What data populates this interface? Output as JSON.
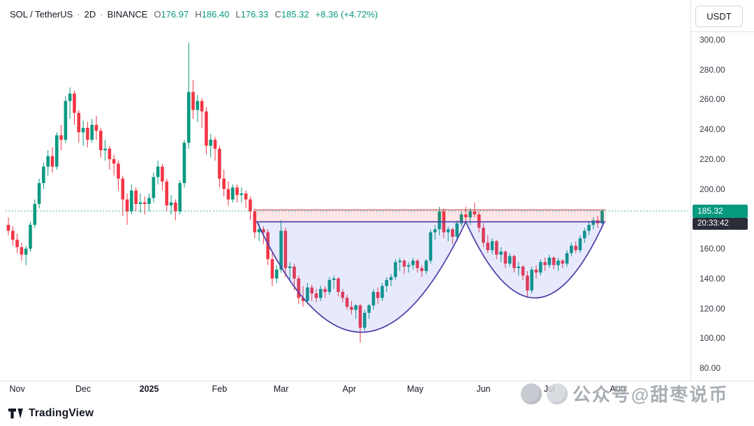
{
  "header": {
    "symbol": "SOL / TetherUS",
    "separator": "·",
    "interval": "2D",
    "exchange": "BINANCE",
    "open_label": "O",
    "open": "176.97",
    "high_label": "H",
    "high": "186.40",
    "low_label": "L",
    "low": "176.33",
    "close_label": "C",
    "close": "185.32",
    "change": "+8.36 (+4.72%)"
  },
  "price_axis": {
    "currency": "USDT",
    "last_price": "185.32",
    "countdown": "20:33:42"
  },
  "footer": {
    "brand": "TradingView"
  },
  "watermark": {
    "text": "公众号@甜枣说币"
  },
  "colors": {
    "up": "#089981",
    "down": "#f23645",
    "zone_fill": "rgba(242,54,69,0.13)",
    "zone_border": "rgba(204,47,60,0.85)",
    "cup_fill": "rgba(88,108,240,0.14)",
    "cup_stroke": "#5243aa",
    "price_line": "#089981",
    "badge_bg": "#089981",
    "countdown_bg": "#2a2e39",
    "axis_line": "#e0e3eb"
  },
  "chart_data": {
    "type": "candlestick",
    "symbol": "SOL/USDT",
    "exchange": "BINANCE",
    "interval": "2D",
    "grid": false,
    "last_price": 185.32,
    "ohlc_current": {
      "open": 176.97,
      "high": 186.4,
      "low": 176.33,
      "close": 185.32,
      "change": 8.36,
      "change_pct": 4.72
    },
    "ylim": [
      72,
      306
    ],
    "y_ticks": [
      300,
      280,
      260,
      240,
      220,
      200,
      180,
      160,
      140,
      120,
      100,
      80
    ],
    "x_labels": [
      {
        "text": "Nov",
        "index": 2
      },
      {
        "text": "Dec",
        "index": 17
      },
      {
        "text": "2025",
        "index": 32,
        "bold": true
      },
      {
        "text": "Feb",
        "index": 48
      },
      {
        "text": "Mar",
        "index": 62
      },
      {
        "text": "Apr",
        "index": 77.5
      },
      {
        "text": "May",
        "index": 92.5
      },
      {
        "text": "Jun",
        "index": 108
      },
      {
        "text": "Jul",
        "index": 123
      },
      {
        "text": "Aug",
        "index": 138.5
      }
    ],
    "candles": [
      [
        176,
        181,
        169,
        172
      ],
      [
        172,
        175,
        162,
        166
      ],
      [
        166,
        170,
        157,
        161
      ],
      [
        161,
        164,
        152,
        156
      ],
      [
        156,
        162,
        149,
        160
      ],
      [
        160,
        178,
        158,
        176
      ],
      [
        176,
        193,
        174,
        190
      ],
      [
        190,
        207,
        187,
        204
      ],
      [
        204,
        218,
        200,
        215
      ],
      [
        215,
        226,
        209,
        222
      ],
      [
        222,
        228,
        211,
        215
      ],
      [
        215,
        238,
        213,
        236
      ],
      [
        236,
        243,
        226,
        233
      ],
      [
        233,
        262,
        231,
        259
      ],
      [
        259,
        268,
        247,
        264
      ],
      [
        264,
        266,
        243,
        251
      ],
      [
        251,
        253,
        231,
        238
      ],
      [
        238,
        246,
        229,
        241
      ],
      [
        241,
        245,
        228,
        233
      ],
      [
        233,
        247,
        231,
        243
      ],
      [
        243,
        249,
        233,
        239
      ],
      [
        239,
        241,
        221,
        226
      ],
      [
        226,
        233,
        219,
        227
      ],
      [
        227,
        229,
        213,
        220
      ],
      [
        220,
        223,
        209,
        217
      ],
      [
        217,
        219,
        199,
        207
      ],
      [
        207,
        209,
        182,
        193
      ],
      [
        193,
        197,
        176,
        185
      ],
      [
        185,
        203,
        183,
        199
      ],
      [
        199,
        201,
        185,
        190
      ],
      [
        190,
        197,
        184,
        191
      ],
      [
        191,
        195,
        183,
        190
      ],
      [
        190,
        197,
        185,
        194
      ],
      [
        194,
        211,
        191,
        208
      ],
      [
        208,
        219,
        203,
        215
      ],
      [
        215,
        217,
        199,
        205
      ],
      [
        205,
        207,
        185,
        189
      ],
      [
        189,
        196,
        183,
        191
      ],
      [
        191,
        193,
        179,
        185
      ],
      [
        185,
        206,
        183,
        204
      ],
      [
        204,
        233,
        201,
        231
      ],
      [
        231,
        298,
        227,
        265
      ],
      [
        265,
        273,
        247,
        253
      ],
      [
        253,
        263,
        245,
        259
      ],
      [
        259,
        261,
        241,
        252
      ],
      [
        252,
        255,
        223,
        229
      ],
      [
        229,
        237,
        221,
        233
      ],
      [
        233,
        235,
        219,
        227
      ],
      [
        227,
        229,
        201,
        207
      ],
      [
        207,
        213,
        195,
        200
      ],
      [
        200,
        205,
        189,
        193
      ],
      [
        193,
        203,
        191,
        201
      ],
      [
        201,
        203,
        191,
        196
      ],
      [
        196,
        201,
        191,
        197
      ],
      [
        197,
        199,
        187,
        193
      ],
      [
        193,
        195,
        179,
        185
      ],
      [
        185,
        187,
        167,
        171
      ],
      [
        171,
        177,
        165,
        173
      ],
      [
        173,
        175,
        163,
        171
      ],
      [
        171,
        173,
        149,
        153
      ],
      [
        153,
        157,
        135,
        140
      ],
      [
        140,
        149,
        137,
        146
      ],
      [
        146,
        179,
        144,
        172
      ],
      [
        172,
        174,
        141,
        147
      ],
      [
        147,
        151,
        139,
        148
      ],
      [
        148,
        150,
        132,
        140
      ],
      [
        140,
        142,
        123,
        127
      ],
      [
        127,
        135,
        121,
        125
      ],
      [
        125,
        137,
        123,
        134
      ],
      [
        134,
        136,
        125,
        130
      ],
      [
        130,
        133,
        124,
        127
      ],
      [
        127,
        135,
        125,
        133
      ],
      [
        133,
        135,
        127,
        131
      ],
      [
        131,
        141,
        129,
        139
      ],
      [
        139,
        142,
        133,
        140
      ],
      [
        140,
        141,
        128,
        131
      ],
      [
        131,
        133,
        124,
        127
      ],
      [
        127,
        129,
        119,
        121
      ],
      [
        121,
        125,
        116,
        119
      ],
      [
        119,
        123,
        113,
        122
      ],
      [
        122,
        123,
        97,
        107
      ],
      [
        107,
        119,
        105,
        117
      ],
      [
        117,
        123,
        113,
        122
      ],
      [
        122,
        133,
        119,
        131
      ],
      [
        131,
        134,
        123,
        127
      ],
      [
        127,
        137,
        125,
        135
      ],
      [
        135,
        141,
        131,
        139
      ],
      [
        139,
        143,
        135,
        141
      ],
      [
        141,
        153,
        139,
        151
      ],
      [
        151,
        154,
        145,
        152
      ],
      [
        152,
        153,
        143,
        148
      ],
      [
        148,
        151,
        144,
        149
      ],
      [
        149,
        154,
        146,
        152
      ],
      [
        152,
        153,
        144,
        147
      ],
      [
        147,
        149,
        141,
        145
      ],
      [
        145,
        153,
        143,
        152
      ],
      [
        152,
        173,
        150,
        171
      ],
      [
        171,
        176,
        166,
        173
      ],
      [
        173,
        188,
        169,
        185
      ],
      [
        185,
        187,
        167,
        171
      ],
      [
        171,
        175,
        165,
        173
      ],
      [
        173,
        174,
        163,
        168
      ],
      [
        168,
        179,
        165,
        177
      ],
      [
        177,
        185,
        175,
        183
      ],
      [
        183,
        188,
        177,
        181
      ],
      [
        181,
        187,
        176,
        185
      ],
      [
        185,
        191,
        181,
        183
      ],
      [
        183,
        185,
        171,
        174
      ],
      [
        174,
        177,
        161,
        164
      ],
      [
        164,
        169,
        157,
        159
      ],
      [
        159,
        167,
        156,
        165
      ],
      [
        165,
        166,
        153,
        156
      ],
      [
        156,
        161,
        151,
        158
      ],
      [
        158,
        159,
        147,
        150
      ],
      [
        150,
        157,
        148,
        155
      ],
      [
        155,
        156,
        144,
        147
      ],
      [
        147,
        151,
        142,
        148
      ],
      [
        148,
        149,
        139,
        142
      ],
      [
        142,
        145,
        127,
        132
      ],
      [
        132,
        148,
        130,
        146
      ],
      [
        146,
        149,
        140,
        144
      ],
      [
        144,
        153,
        142,
        151
      ],
      [
        151,
        154,
        145,
        149
      ],
      [
        149,
        156,
        147,
        154
      ],
      [
        154,
        155,
        146,
        149
      ],
      [
        149,
        154,
        145,
        152
      ],
      [
        152,
        153,
        147,
        150
      ],
      [
        150,
        159,
        148,
        157
      ],
      [
        157,
        164,
        155,
        162
      ],
      [
        162,
        165,
        157,
        159
      ],
      [
        159,
        169,
        157,
        167
      ],
      [
        167,
        174,
        164,
        172
      ],
      [
        172,
        178,
        169,
        176
      ],
      [
        176,
        181,
        173,
        179
      ],
      [
        179,
        182,
        174,
        177
      ],
      [
        176.97,
        186.4,
        176.33,
        185.32
      ]
    ],
    "overlays": {
      "resistance_zone": {
        "from_index": 56,
        "to_index": 135.8,
        "top_price": 186,
        "bottom_price": 178
      },
      "cups": [
        {
          "from_index": 56.5,
          "to_index": 104,
          "rim_price": 178,
          "bottom_price": 104
        },
        {
          "from_index": 104,
          "to_index": 135.5,
          "rim_price": 178,
          "bottom_price": 127
        }
      ]
    }
  }
}
